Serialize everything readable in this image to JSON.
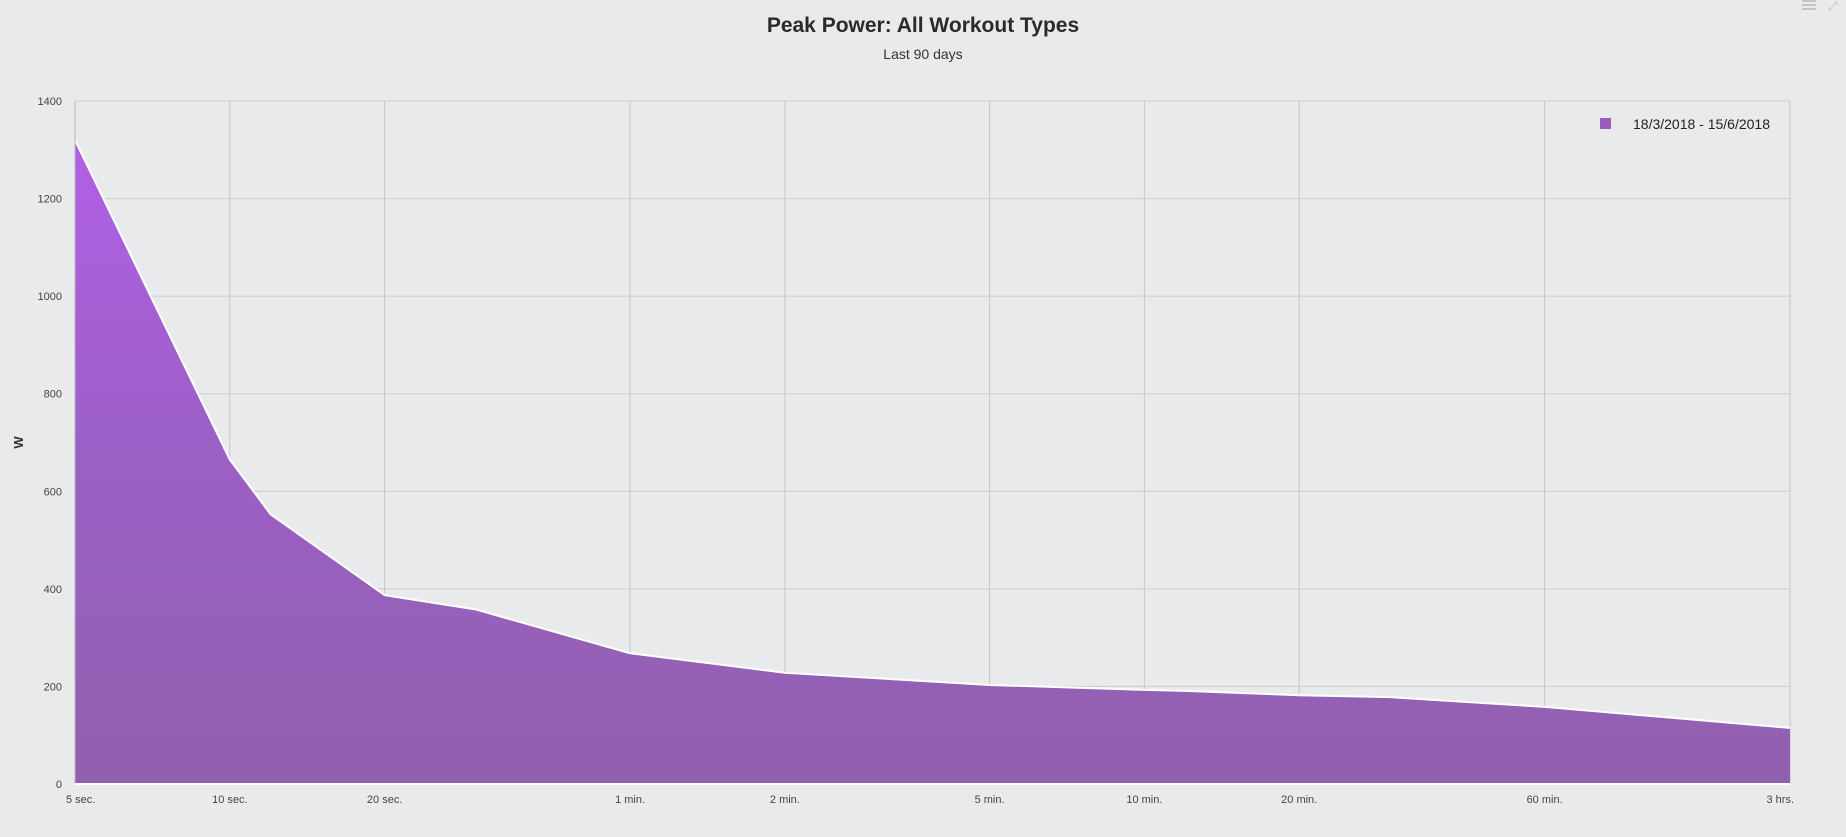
{
  "chart_data": {
    "type": "area",
    "title": "Peak Power: All Workout Types",
    "subtitle": "Last 90 days",
    "ylabel": "W",
    "xlabel": "",
    "ylim": [
      0,
      1400
    ],
    "y_ticks": [
      "0",
      "200",
      "400",
      "600",
      "800",
      "1000",
      "1200",
      "1400"
    ],
    "x_scale": "log",
    "x_ticks": [
      {
        "label": "5 sec.",
        "seconds": 5
      },
      {
        "label": "10 sec.",
        "seconds": 10
      },
      {
        "label": "20 sec.",
        "seconds": 20
      },
      {
        "label": "1 min.",
        "seconds": 60
      },
      {
        "label": "2 min.",
        "seconds": 120
      },
      {
        "label": "5 min.",
        "seconds": 300
      },
      {
        "label": "10 min.",
        "seconds": 600
      },
      {
        "label": "20 min.",
        "seconds": 1200
      },
      {
        "label": "60 min.",
        "seconds": 3600
      },
      {
        "label": "3 hrs.",
        "seconds": 10800
      }
    ],
    "grid": true,
    "legend_position": "top-right",
    "series": [
      {
        "name": "18/3/2018 - 15/6/2018",
        "color": "#9b5bbf",
        "x": [
          5,
          10,
          12,
          20,
          30,
          60,
          120,
          300,
          600,
          720,
          1200,
          1800,
          3600,
          10800
        ],
        "values": [
          1320,
          665,
          553,
          387,
          358,
          268,
          228,
          203,
          193,
          191,
          182,
          178,
          158,
          115
        ]
      }
    ]
  },
  "toolbar": {
    "menu_icon": "hamburger-menu-icon",
    "expand_icon": "expand-icon"
  }
}
